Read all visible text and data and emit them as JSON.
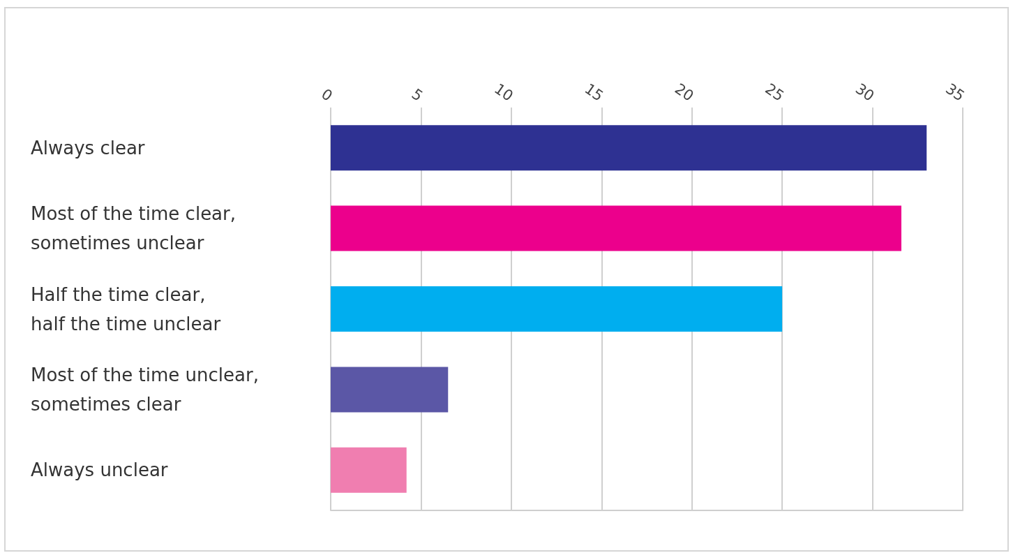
{
  "chart_data": {
    "type": "bar",
    "orientation": "horizontal",
    "categories": [
      "Always clear",
      "Most of the time clear,\nsometimes unclear",
      "Half the time clear,\nhalf the time unclear",
      "Most of the time unclear,\nsometimes clear",
      "Always unclear"
    ],
    "values": [
      33,
      31.6,
      25,
      6.5,
      4.2
    ],
    "colors": [
      "#2e3192",
      "#ec008c",
      "#00aeef",
      "#5b57a6",
      "#f07eb0"
    ],
    "xlim": [
      0,
      35
    ],
    "xticks": [
      0,
      5,
      10,
      15,
      20,
      25,
      30,
      35
    ],
    "grid": "x"
  }
}
